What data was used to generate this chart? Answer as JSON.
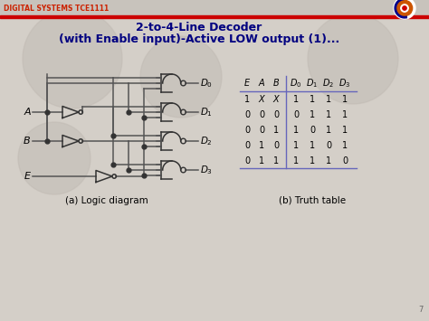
{
  "title_line1": "2-to-4-Line Decoder",
  "title_line2": "(with Enable input)-Active LOW output (1)...",
  "header_label": "DIGITAL SYSTEMS TCE1111",
  "caption_left": "(a) Logic diagram",
  "caption_right": "(b) Truth table",
  "slide_bg": "#d4cfc8",
  "header_bg": "#c8c3bc",
  "truth_table_rows": [
    [
      "1",
      "X",
      "X",
      "1",
      "1",
      "1",
      "1"
    ],
    [
      "0",
      "0",
      "0",
      "0",
      "1",
      "1",
      "1"
    ],
    [
      "0",
      "0",
      "1",
      "1",
      "0",
      "1",
      "1"
    ],
    [
      "0",
      "1",
      "0",
      "1",
      "1",
      "0",
      "1"
    ],
    [
      "0",
      "1",
      "1",
      "1",
      "1",
      "1",
      "0"
    ]
  ],
  "table_line_color": "#6666bb",
  "red_line_color": "#cc0000",
  "title_color": "#000080",
  "wire_color": "#555555",
  "gate_color": "#333333"
}
